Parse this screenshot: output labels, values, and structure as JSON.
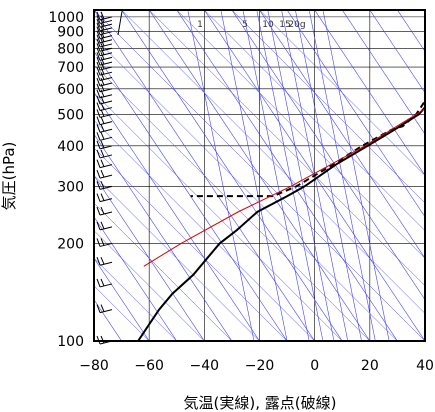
{
  "chart_data": {
    "type": "skew-t-log-p",
    "xlabel": "気温(実線), 露点(破線)",
    "ylabel": "気圧(hPa)",
    "xlim": [
      -80,
      40
    ],
    "ylim": [
      1050,
      100
    ],
    "y_scale": "log",
    "x_ticks": [
      -80,
      -60,
      -40,
      -20,
      0,
      20,
      40
    ],
    "x_tick_labels": [
      "−80",
      "−60",
      "−40",
      "−20",
      "0",
      "20",
      "40"
    ],
    "y_ticks": [
      100,
      200,
      300,
      400,
      500,
      600,
      700,
      800,
      900,
      1000
    ],
    "y_tick_labels": [
      "100",
      "200",
      "300",
      "400",
      "500",
      "600",
      "700",
      "800",
      "900",
      "1000"
    ],
    "mixing_ratio_labels": [
      "1",
      "5",
      "10",
      "15",
      "20g"
    ],
    "grid": true,
    "series": [
      {
        "style": "solid",
        "color": "#000000",
        "points": [
          [
            1000,
            20.5
          ],
          [
            950,
            14
          ],
          [
            900,
            9
          ],
          [
            850,
            5
          ],
          [
            800,
            0.5
          ],
          [
            750,
            -4
          ],
          [
            700,
            -7
          ],
          [
            650,
            -10
          ],
          [
            600,
            -14
          ],
          [
            550,
            -16
          ],
          [
            500,
            -17
          ],
          [
            450,
            -22
          ],
          [
            400,
            -28
          ],
          [
            350,
            -35
          ],
          [
            300,
            -41
          ],
          [
            280,
            -45
          ],
          [
            250,
            -52
          ],
          [
            220,
            -55
          ],
          [
            200,
            -58
          ],
          [
            180,
            -59
          ],
          [
            160,
            -60
          ],
          [
            140,
            -63
          ],
          [
            125,
            -64
          ],
          [
            115,
            -64
          ],
          [
            105,
            -64
          ],
          [
            100,
            -64
          ]
        ]
      },
      {
        "style": "dashed",
        "color": "#000000",
        "points": [
          [
            1000,
            18
          ],
          [
            950,
            14
          ],
          [
            900,
            10
          ],
          [
            850,
            3
          ],
          [
            800,
            -2
          ],
          [
            750,
            -7
          ],
          [
            700,
            -10
          ],
          [
            650,
            -13
          ],
          [
            600,
            -16
          ],
          [
            550,
            -18
          ],
          [
            500,
            -18
          ],
          [
            460,
            -20
          ],
          [
            450,
            -23
          ],
          [
            400,
            -30
          ],
          [
            350,
            -36
          ],
          [
            300,
            -44
          ],
          [
            280,
            -50
          ],
          [
            280,
            -80
          ]
        ]
      },
      {
        "style": "solid",
        "color": "#e00000",
        "points": [
          [
            1000,
            20.5
          ],
          [
            900,
            14
          ],
          [
            800,
            6
          ],
          [
            700,
            -2
          ],
          [
            600,
            -10
          ],
          [
            500,
            -18
          ],
          [
            400,
            -29
          ],
          [
            300,
            -46
          ],
          [
            250,
            -59
          ],
          [
            200,
            -72
          ],
          [
            170,
            -80
          ]
        ]
      }
    ],
    "wind_barb_pressures": [
      1000,
      975,
      950,
      925,
      900,
      875,
      850,
      825,
      800,
      775,
      750,
      725,
      700,
      675,
      650,
      625,
      600,
      575,
      550,
      525,
      500,
      475,
      450,
      425,
      400,
      375,
      350,
      325,
      300,
      275,
      250,
      225,
      200,
      175,
      150,
      125,
      100
    ]
  }
}
